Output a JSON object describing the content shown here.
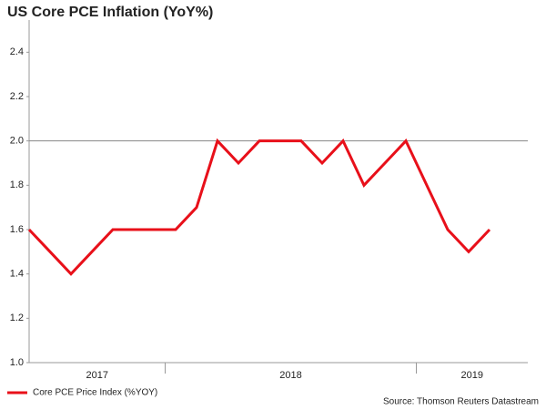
{
  "chart_data": {
    "type": "line",
    "title": "US Core PCE Inflation (YoY%)",
    "categories": [
      null,
      null,
      null,
      null,
      null,
      null,
      null,
      null,
      null,
      null,
      null,
      null,
      null,
      null,
      null,
      null,
      null,
      null,
      null,
      null,
      null,
      null,
      null
    ],
    "x_groups": [
      {
        "label": "2017",
        "start": 0,
        "end": 6
      },
      {
        "label": "2018",
        "start": 7,
        "end": 18
      },
      {
        "label": "2019",
        "start": 19,
        "end": 22
      }
    ],
    "series": [
      {
        "name": "Core PCE Price Index (%YOY)",
        "color": "#e8101a",
        "values": [
          1.6,
          1.5,
          1.4,
          1.5,
          1.6,
          1.6,
          1.6,
          1.6,
          1.7,
          2.0,
          1.9,
          2.0,
          2.0,
          2.0,
          1.9,
          2.0,
          1.8,
          1.9,
          2.0,
          1.8,
          1.6,
          1.5,
          1.6
        ]
      }
    ],
    "ylim": [
      1.0,
      2.5
    ],
    "yticks": [
      {
        "value": 1.0,
        "label": "1.0"
      },
      1.2,
      1.4,
      1.6,
      1.8,
      {
        "value": 2.0,
        "label": "2.0"
      },
      2.2,
      2.4
    ],
    "reference_line": 2,
    "source": "Source: Thomson Reuters Datastream"
  }
}
